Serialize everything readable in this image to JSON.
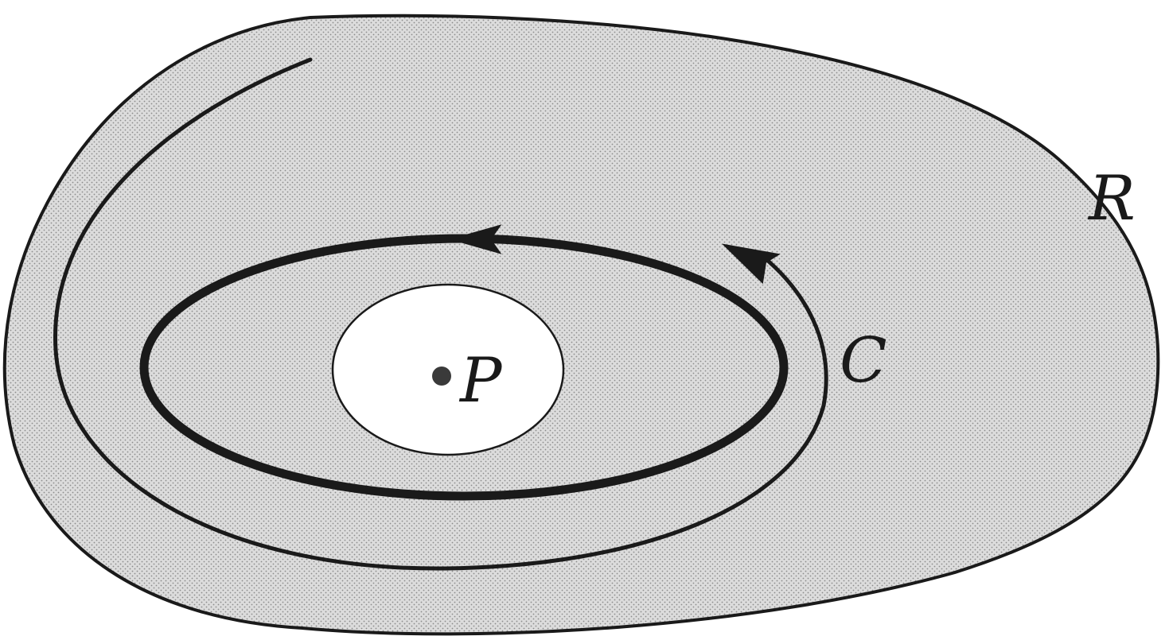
{
  "labels": {
    "region": "R",
    "cycle": "C",
    "point": "P"
  },
  "colors": {
    "background": "#ffffff",
    "region_fill": "#dcdcdc",
    "stipple_dot": "#8c8c8c",
    "stroke": "#1a1a1a",
    "hole_fill": "#ffffff"
  }
}
